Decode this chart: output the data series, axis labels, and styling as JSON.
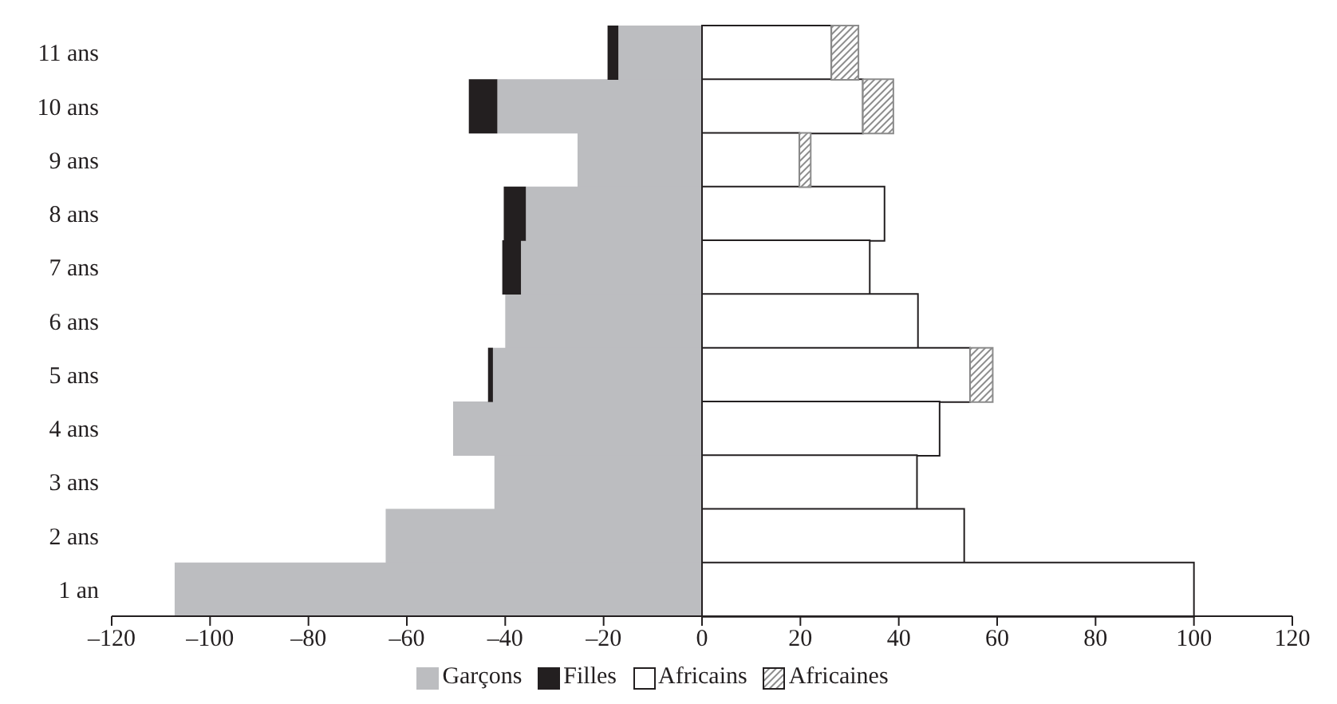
{
  "chart_data": {
    "type": "bar",
    "orientation": "horizontal",
    "stacked": true,
    "categories": [
      "11 ans",
      "10 ans",
      "9 ans",
      "8 ans",
      "7 ans",
      "6 ans",
      "5 ans",
      "4 ans",
      "3 ans",
      "2 ans",
      "1 an"
    ],
    "series": [
      {
        "name": "Garçons",
        "color": "#bcbdc0",
        "values": [
          -17,
          -41.6,
          -25.3,
          -35.8,
          -36.8,
          -40,
          -42.5,
          -50.6,
          -42.2,
          -64.3,
          -107.2
        ]
      },
      {
        "name": "Filles",
        "color": "#231f20",
        "values": [
          -2.2,
          -5.8,
          null,
          -4.5,
          -3.8,
          null,
          -1,
          null,
          null,
          null,
          null
        ]
      },
      {
        "name": "Africains",
        "color": "#ffffff",
        "values": [
          26.3,
          32.7,
          19.8,
          37.1,
          34.1,
          43.9,
          54.5,
          48.3,
          43.7,
          53.3,
          100
        ]
      },
      {
        "name": "Africaines",
        "color": "#8c8c8c",
        "values": [
          5.5,
          6.2,
          2.3,
          null,
          null,
          null,
          4.6,
          null,
          null,
          null,
          null
        ]
      }
    ],
    "xlim": [
      -120,
      120
    ],
    "xticks": [
      {
        "value": -120,
        "label": "–120"
      },
      {
        "value": -100,
        "label": "–100"
      },
      {
        "value": -80,
        "label": "–80"
      },
      {
        "value": -60,
        "label": "–60"
      },
      {
        "value": -40,
        "label": "–40"
      },
      {
        "value": -20,
        "label": "–20"
      },
      0,
      20,
      40,
      60,
      80,
      100,
      120
    ],
    "legend": "bottom"
  }
}
